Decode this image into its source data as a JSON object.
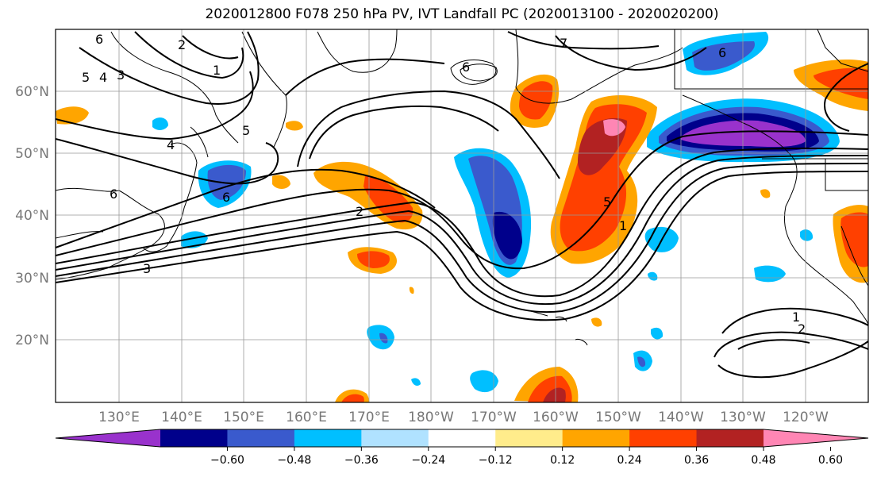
{
  "title": "2020012800 F078 250 hPa PV, IVT Landfall PC (2020013100 - 2020020200)",
  "lat_labels": [
    "60°N",
    "50°N",
    "40°N",
    "30°N",
    "20°N"
  ],
  "lon_labels": [
    "130°E",
    "140°E",
    "150°E",
    "160°E",
    "170°E",
    "180°W",
    "170°W",
    "160°W",
    "150°W",
    "140°W",
    "130°W",
    "120°W"
  ],
  "colorbar": {
    "ticks": [
      "−0.60",
      "−0.48",
      "−0.36",
      "−0.24",
      "−0.12",
      "0.12",
      "0.24",
      "0.36",
      "0.48",
      "0.60"
    ],
    "colors": [
      "#9932cc",
      "#00008b",
      "#3a5acd",
      "#00bfff",
      "#b0e2ff",
      "#ffffff",
      "#ffec8b",
      "#ffa500",
      "#ff4000",
      "#b22222",
      "#ff86b4"
    ]
  },
  "contour_labels": [
    "6",
    "2",
    "1",
    "5",
    "4",
    "3",
    "5",
    "7",
    "6",
    "6",
    "2",
    "3",
    "5",
    "1",
    "1",
    "2",
    "6",
    "4",
    "6"
  ]
}
